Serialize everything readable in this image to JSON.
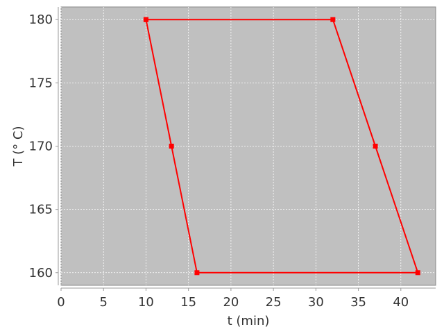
{
  "chart_data": {
    "type": "line",
    "title": "",
    "xlabel": "t (min)",
    "ylabel": "T (° C)",
    "xlim": [
      0,
      44.1
    ],
    "ylim": [
      159,
      181
    ],
    "xticks": [
      0,
      5,
      10,
      15,
      20,
      25,
      30,
      35,
      40
    ],
    "yticks": [
      160,
      165,
      170,
      175,
      180
    ],
    "grid": true,
    "plot_background": "#c0c0c0",
    "series": [
      {
        "color": "#ff0000",
        "marker": "square",
        "x": [
          10,
          32,
          37,
          42,
          16,
          13,
          10
        ],
        "y": [
          180,
          180,
          170,
          160,
          160,
          170,
          180
        ]
      }
    ]
  }
}
